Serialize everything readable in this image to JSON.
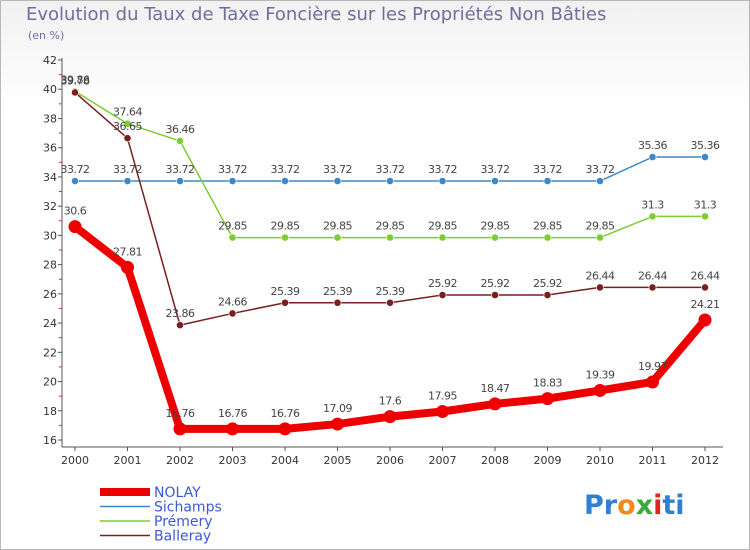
{
  "title": "Evolution du Taux de Taxe Foncière sur les Propriétés Non Bâties",
  "unit_label": "(en %)",
  "logo": {
    "letters": [
      "P",
      "r",
      "o",
      "x",
      "i",
      "t",
      "i"
    ],
    "colors": [
      "#2f7fd2",
      "#2f7fd2",
      "#f08a1c",
      "#3aa83a",
      "#e02424",
      "#2f7fd2",
      "#2f7fd2"
    ]
  },
  "chart_data": {
    "type": "line",
    "title": "Evolution du Taux de Taxe Foncière sur les Propriétés Non Bâties",
    "ylabel": "(en %)",
    "x": [
      "2000",
      "2001",
      "2002",
      "2003",
      "2004",
      "2005",
      "2006",
      "2007",
      "2008",
      "2009",
      "2010",
      "2011",
      "2012"
    ],
    "ylim": [
      16,
      42
    ],
    "yticks": [
      "16",
      "18",
      "20",
      "22",
      "24",
      "26",
      "28",
      "30",
      "32",
      "34",
      "36",
      "38",
      "40",
      "42"
    ],
    "grid": false,
    "legend_position": "bottom-left",
    "series": [
      {
        "name": "NOLAY",
        "color": "#ee0000",
        "emphasis": true,
        "values": [
          30.6,
          27.81,
          16.76,
          16.76,
          16.76,
          17.09,
          17.6,
          17.95,
          18.47,
          18.83,
          19.39,
          19.97,
          24.21
        ],
        "labels": [
          "30.6",
          "27.81",
          "16.76",
          "16.76",
          "16.76",
          "17.09",
          "17.6",
          "17.95",
          "18.47",
          "18.83",
          "19.39",
          "19.97",
          "24.21"
        ]
      },
      {
        "name": "Sichamps",
        "color": "#3d88c8",
        "emphasis": false,
        "values": [
          33.72,
          33.72,
          33.72,
          33.72,
          33.72,
          33.72,
          33.72,
          33.72,
          33.72,
          33.72,
          33.72,
          35.36,
          35.36
        ],
        "labels": [
          "33.72",
          "33.72",
          "33.72",
          "33.72",
          "33.72",
          "33.72",
          "33.72",
          "33.72",
          "33.72",
          "33.72",
          "33.72",
          "35.36",
          "35.36"
        ]
      },
      {
        "name": "Prémery",
        "color": "#7ccd30",
        "emphasis": false,
        "values": [
          39.86,
          37.64,
          36.46,
          29.85,
          29.85,
          29.85,
          29.85,
          29.85,
          29.85,
          29.85,
          29.85,
          31.3,
          31.3
        ],
        "labels": [
          "39.86",
          "37.64",
          "36.46",
          "29.85",
          "29.85",
          "29.85",
          "29.85",
          "29.85",
          "29.85",
          "29.85",
          "29.85",
          "31.3",
          "31.3"
        ]
      },
      {
        "name": "Balleray",
        "color": "#7a1f1f",
        "emphasis": false,
        "values": [
          39.78,
          36.65,
          23.86,
          24.66,
          25.39,
          25.39,
          25.39,
          25.92,
          25.92,
          25.92,
          26.44,
          26.44,
          26.44
        ],
        "labels": [
          "39.78",
          "36.65",
          "23.86",
          "24.66",
          "25.39",
          "25.39",
          "25.39",
          "25.92",
          "25.92",
          "25.92",
          "26.44",
          "26.44",
          "26.44"
        ]
      }
    ]
  }
}
